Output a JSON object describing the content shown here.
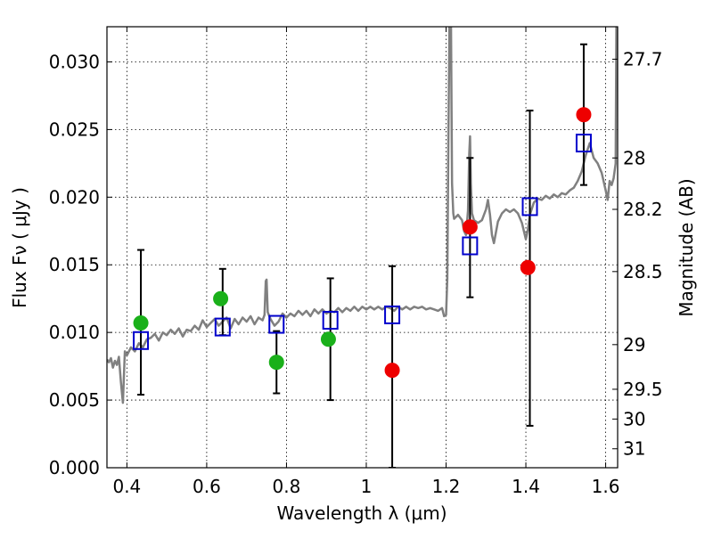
{
  "chart_data": {
    "type": "scatter",
    "xlabel": "Wavelength  λ (μm)",
    "ylabel": "Flux  Fν  ( μJy )",
    "y2label": "Magnitude (AB)",
    "xlim": [
      0.35,
      1.63
    ],
    "ylim": [
      0.0,
      0.0326
    ],
    "x_ticks": [
      0.4,
      0.6,
      0.8,
      1.0,
      1.2,
      1.4,
      1.6
    ],
    "x_tick_labels": [
      "0.4",
      "0.6",
      "0.8",
      "1",
      "1.2",
      "1.4",
      "1.6"
    ],
    "y_ticks": [
      0.0,
      0.005,
      0.01,
      0.015,
      0.02,
      0.025,
      0.03
    ],
    "y_tick_labels": [
      "0.000",
      "0.005",
      "0.010",
      "0.015",
      "0.020",
      "0.025",
      "0.030"
    ],
    "y2_ticks": [
      {
        "label": "27.7",
        "flux": 0.0302
      },
      {
        "label": "28",
        "flux": 0.0229
      },
      {
        "label": "28.2",
        "flux": 0.0191
      },
      {
        "label": "28.5",
        "flux": 0.0145
      },
      {
        "label": "29",
        "flux": 0.0091
      },
      {
        "label": "29.5",
        "flux": 0.0058
      },
      {
        "label": "30",
        "flux": 0.0036
      },
      {
        "label": "31",
        "flux": 0.0014
      }
    ],
    "grid": true,
    "colors": {
      "green": "#1ab01a",
      "red": "#ee0000",
      "blue": "#0000cc",
      "spectrum": "#808080",
      "errorbar": "#000000"
    },
    "series": [
      {
        "marker": "circle",
        "color": "green",
        "points": [
          {
            "x": 0.435,
            "y": 0.0107
          },
          {
            "x": 0.635,
            "y": 0.0125
          },
          {
            "x": 0.775,
            "y": 0.0078
          },
          {
            "x": 0.905,
            "y": 0.0095
          }
        ]
      },
      {
        "marker": "circle",
        "color": "red",
        "points": [
          {
            "x": 1.065,
            "y": 0.0072
          },
          {
            "x": 1.26,
            "y": 0.0178
          },
          {
            "x": 1.405,
            "y": 0.0148
          },
          {
            "x": 1.545,
            "y": 0.0261
          }
        ]
      },
      {
        "marker": "square",
        "color": "blue",
        "points": [
          {
            "x": 0.435,
            "y": 0.0094,
            "err_low": 0.0054,
            "err_high": 0.0161
          },
          {
            "x": 0.64,
            "y": 0.0104,
            "err_low": 0.0098,
            "err_high": 0.0147
          },
          {
            "x": 0.775,
            "y": 0.0106,
            "err_low": 0.0055,
            "err_high": 0.0101
          },
          {
            "x": 0.91,
            "y": 0.0109,
            "err_low": 0.005,
            "err_high": 0.014
          },
          {
            "x": 1.065,
            "y": 0.0113,
            "err_low": 0.0,
            "err_high": 0.0149
          },
          {
            "x": 1.26,
            "y": 0.0164,
            "err_low": 0.0126,
            "err_high": 0.0229
          },
          {
            "x": 1.41,
            "y": 0.0193,
            "err_low": 0.0031,
            "err_high": 0.0264
          },
          {
            "x": 1.545,
            "y": 0.024,
            "err_low": 0.0209,
            "err_high": 0.0313
          }
        ]
      },
      {
        "marker": "line",
        "color": "spectrum",
        "points": [
          [
            0.35,
            0.008
          ],
          [
            0.355,
            0.0078
          ],
          [
            0.36,
            0.0081
          ],
          [
            0.365,
            0.0074
          ],
          [
            0.37,
            0.0079
          ],
          [
            0.375,
            0.0076
          ],
          [
            0.38,
            0.0082
          ],
          [
            0.385,
            0.0063
          ],
          [
            0.39,
            0.0048
          ],
          [
            0.395,
            0.0086
          ],
          [
            0.4,
            0.0083
          ],
          [
            0.41,
            0.0089
          ],
          [
            0.42,
            0.0086
          ],
          [
            0.43,
            0.0092
          ],
          [
            0.44,
            0.0089
          ],
          [
            0.45,
            0.0095
          ],
          [
            0.46,
            0.0096
          ],
          [
            0.47,
            0.0099
          ],
          [
            0.48,
            0.0094
          ],
          [
            0.49,
            0.01
          ],
          [
            0.5,
            0.0098
          ],
          [
            0.51,
            0.0102
          ],
          [
            0.52,
            0.0099
          ],
          [
            0.53,
            0.0103
          ],
          [
            0.54,
            0.0097
          ],
          [
            0.55,
            0.0102
          ],
          [
            0.56,
            0.0101
          ],
          [
            0.57,
            0.0105
          ],
          [
            0.58,
            0.0102
          ],
          [
            0.59,
            0.0109
          ],
          [
            0.6,
            0.0104
          ],
          [
            0.61,
            0.0107
          ],
          [
            0.62,
            0.011
          ],
          [
            0.63,
            0.0105
          ],
          [
            0.64,
            0.0108
          ],
          [
            0.65,
            0.0111
          ],
          [
            0.66,
            0.0103
          ],
          [
            0.67,
            0.011
          ],
          [
            0.68,
            0.0106
          ],
          [
            0.69,
            0.0111
          ],
          [
            0.7,
            0.0108
          ],
          [
            0.71,
            0.0112
          ],
          [
            0.72,
            0.0106
          ],
          [
            0.73,
            0.0111
          ],
          [
            0.74,
            0.0109
          ],
          [
            0.745,
            0.0113
          ],
          [
            0.748,
            0.0138
          ],
          [
            0.75,
            0.0139
          ],
          [
            0.753,
            0.0115
          ],
          [
            0.76,
            0.011
          ],
          [
            0.77,
            0.0105
          ],
          [
            0.78,
            0.0108
          ],
          [
            0.79,
            0.0114
          ],
          [
            0.8,
            0.0111
          ],
          [
            0.81,
            0.0114
          ],
          [
            0.82,
            0.0112
          ],
          [
            0.83,
            0.0116
          ],
          [
            0.84,
            0.0113
          ],
          [
            0.85,
            0.0116
          ],
          [
            0.86,
            0.0112
          ],
          [
            0.87,
            0.0117
          ],
          [
            0.88,
            0.0114
          ],
          [
            0.89,
            0.0117
          ],
          [
            0.9,
            0.0114
          ],
          [
            0.91,
            0.0116
          ],
          [
            0.92,
            0.0115
          ],
          [
            0.93,
            0.0118
          ],
          [
            0.94,
            0.0115
          ],
          [
            0.95,
            0.0118
          ],
          [
            0.96,
            0.0116
          ],
          [
            0.97,
            0.0119
          ],
          [
            0.98,
            0.0116
          ],
          [
            0.99,
            0.0119
          ],
          [
            1.0,
            0.0117
          ],
          [
            1.01,
            0.0119
          ],
          [
            1.02,
            0.0117
          ],
          [
            1.03,
            0.0119
          ],
          [
            1.04,
            0.0117
          ],
          [
            1.05,
            0.0119
          ],
          [
            1.06,
            0.0118
          ],
          [
            1.07,
            0.0116
          ],
          [
            1.08,
            0.0119
          ],
          [
            1.09,
            0.0117
          ],
          [
            1.1,
            0.0119
          ],
          [
            1.11,
            0.0117
          ],
          [
            1.12,
            0.0119
          ],
          [
            1.13,
            0.0118
          ],
          [
            1.14,
            0.0119
          ],
          [
            1.15,
            0.0117
          ],
          [
            1.16,
            0.0118
          ],
          [
            1.17,
            0.0117
          ],
          [
            1.18,
            0.0116
          ],
          [
            1.19,
            0.0118
          ],
          [
            1.195,
            0.0112
          ],
          [
            1.2,
            0.0113
          ],
          [
            1.203,
            0.014
          ],
          [
            1.206,
            0.025
          ],
          [
            1.209,
            0.034
          ],
          [
            1.212,
            0.034
          ],
          [
            1.215,
            0.021
          ],
          [
            1.218,
            0.0188
          ],
          [
            1.22,
            0.0184
          ],
          [
            1.23,
            0.0187
          ],
          [
            1.24,
            0.0183
          ],
          [
            1.245,
            0.0175
          ],
          [
            1.25,
            0.0172
          ],
          [
            1.255,
            0.019
          ],
          [
            1.258,
            0.0232
          ],
          [
            1.26,
            0.0245
          ],
          [
            1.262,
            0.021
          ],
          [
            1.265,
            0.0188
          ],
          [
            1.27,
            0.0183
          ],
          [
            1.28,
            0.0181
          ],
          [
            1.29,
            0.0183
          ],
          [
            1.3,
            0.0191
          ],
          [
            1.305,
            0.0198
          ],
          [
            1.31,
            0.0187
          ],
          [
            1.315,
            0.0172
          ],
          [
            1.32,
            0.0166
          ],
          [
            1.33,
            0.0182
          ],
          [
            1.34,
            0.0188
          ],
          [
            1.35,
            0.0191
          ],
          [
            1.36,
            0.0189
          ],
          [
            1.37,
            0.0191
          ],
          [
            1.38,
            0.0188
          ],
          [
            1.39,
            0.0181
          ],
          [
            1.4,
            0.0169
          ],
          [
            1.405,
            0.0176
          ],
          [
            1.41,
            0.0187
          ],
          [
            1.42,
            0.0196
          ],
          [
            1.43,
            0.0199
          ],
          [
            1.44,
            0.0198
          ],
          [
            1.45,
            0.0201
          ],
          [
            1.46,
            0.0199
          ],
          [
            1.47,
            0.0202
          ],
          [
            1.48,
            0.02
          ],
          [
            1.49,
            0.0203
          ],
          [
            1.5,
            0.0202
          ],
          [
            1.51,
            0.0205
          ],
          [
            1.52,
            0.0207
          ],
          [
            1.53,
            0.0212
          ],
          [
            1.54,
            0.0219
          ],
          [
            1.55,
            0.0231
          ],
          [
            1.56,
            0.024
          ],
          [
            1.57,
            0.0229
          ],
          [
            1.58,
            0.0225
          ],
          [
            1.59,
            0.0218
          ],
          [
            1.6,
            0.0205
          ],
          [
            1.605,
            0.0198
          ],
          [
            1.61,
            0.0212
          ],
          [
            1.615,
            0.0209
          ],
          [
            1.62,
            0.0214
          ],
          [
            1.625,
            0.0225
          ],
          [
            1.627,
            0.034
          ],
          [
            1.63,
            0.034
          ]
        ]
      }
    ]
  }
}
